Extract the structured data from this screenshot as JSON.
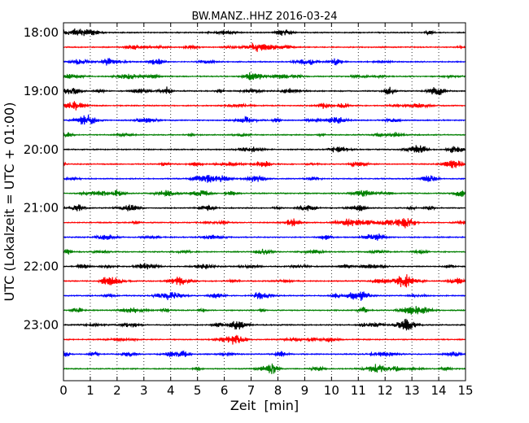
{
  "chart_data": {
    "type": "line",
    "title": "BW.MANZ..HHZ 2016-03-24",
    "xlabel": "Zeit  [min]",
    "ylabel": "UTC (Lokalzeit = UTC + 01:00)",
    "xlim": [
      0,
      15
    ],
    "x_ticks": [
      "0",
      "1",
      "2",
      "3",
      "4",
      "5",
      "6",
      "7",
      "8",
      "9",
      "10",
      "11",
      "12",
      "13",
      "14",
      "15"
    ],
    "y_tick_labels": [
      "18:00",
      "19:00",
      "20:00",
      "21:00",
      "22:00",
      "23:00"
    ],
    "y_tick_rows": [
      0,
      4,
      8,
      12,
      16,
      20
    ],
    "trace_interval_minutes": 15,
    "trace_count": 24,
    "trace_start": "18:00",
    "colors": [
      "#000000",
      "#ff0000",
      "#0000ff",
      "#008000"
    ],
    "grid_x": "dotted",
    "grid_y": false,
    "legend": "none"
  }
}
